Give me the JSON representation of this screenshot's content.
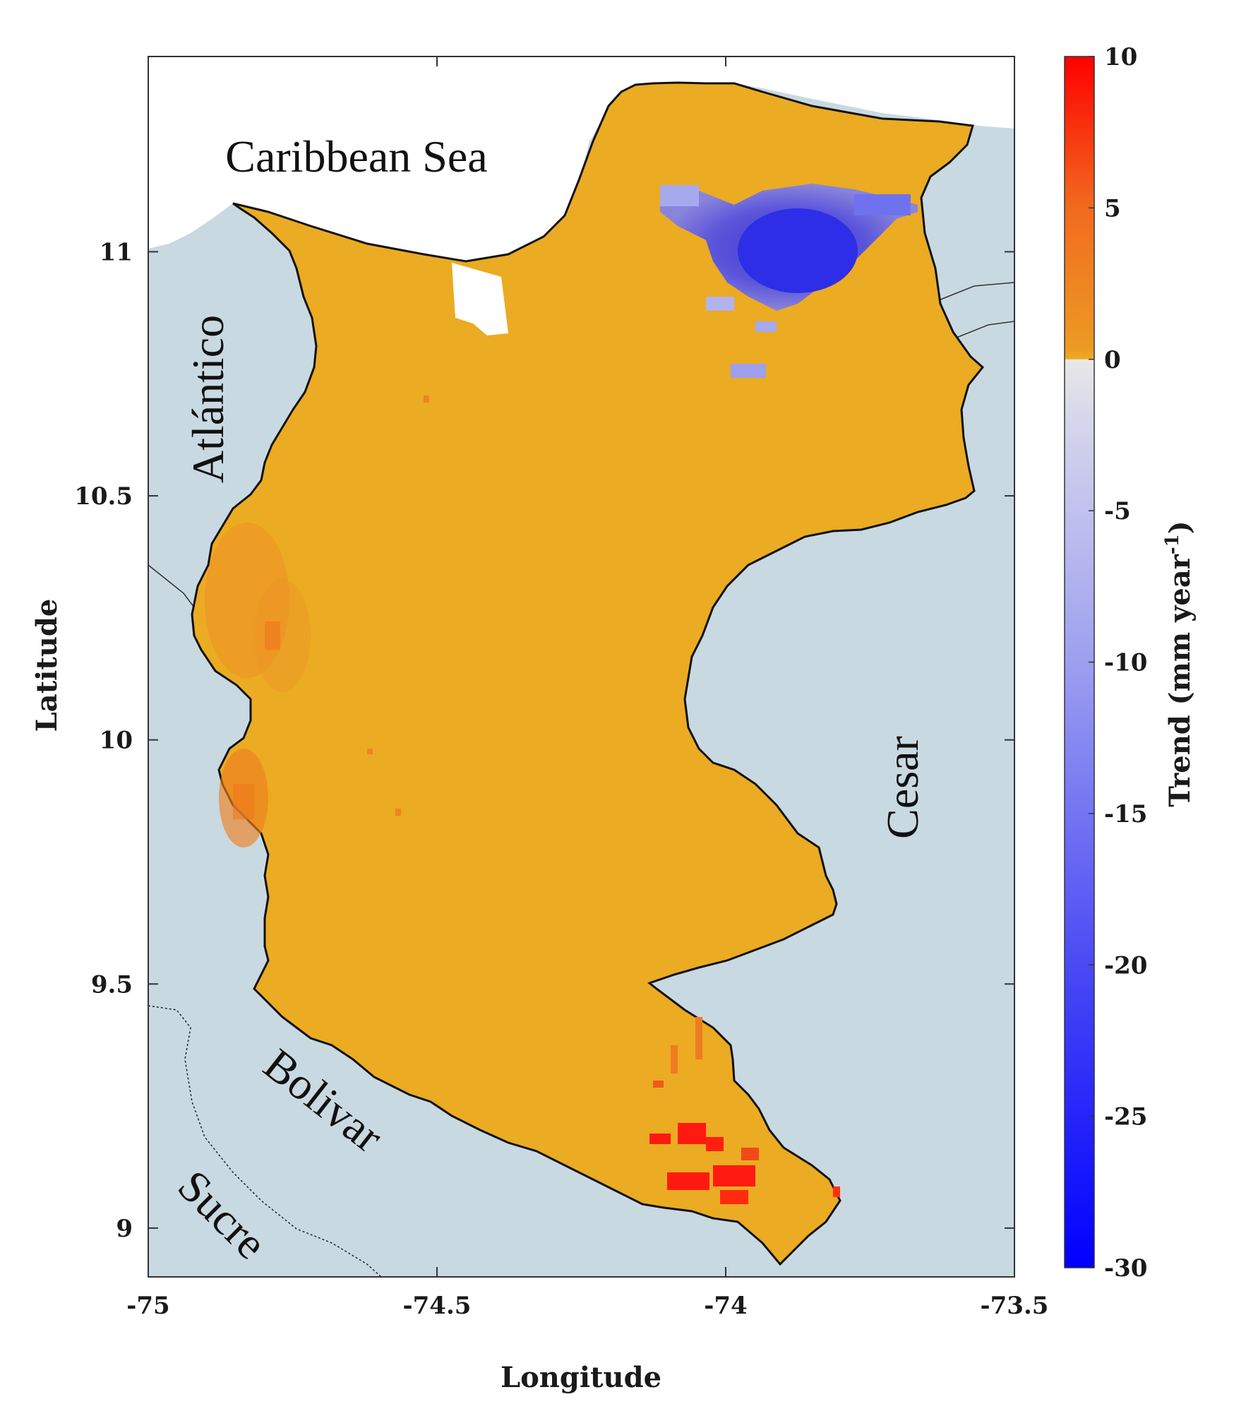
{
  "map": {
    "xlabel": "Longitude",
    "ylabel": "Latitude",
    "xticks": [
      {
        "value": -75,
        "label": "-75"
      },
      {
        "value": -74.5,
        "label": "-74.5"
      },
      {
        "value": -74,
        "label": "-74"
      },
      {
        "value": -73.5,
        "label": "-73.5"
      }
    ],
    "yticks": [
      {
        "value": 11,
        "label": "11"
      },
      {
        "value": 10.5,
        "label": "10.5"
      },
      {
        "value": 10,
        "label": "10"
      },
      {
        "value": 9.5,
        "label": "9.5"
      },
      {
        "value": 9,
        "label": "9"
      }
    ],
    "xlim": [
      -75,
      -73.5
    ],
    "ylim": [
      8.9,
      11.4
    ],
    "region_labels": {
      "caribbean": "Caribbean Sea",
      "atlantico": "Atlántico",
      "cesar": "Cesar",
      "bolivar": "Bolivar",
      "sucre": "Sucre"
    },
    "colors": {
      "land_background": "#c9d9e1",
      "sea": "#ffffff",
      "region_fill": "#ebab22"
    }
  },
  "colorbar": {
    "title": "Trend (mm year",
    "title_superscript": "-1",
    "title_suffix": ")",
    "min": -30,
    "max": 10,
    "ticks": [
      {
        "value": 10,
        "label": "10"
      },
      {
        "value": 5,
        "label": "5"
      },
      {
        "value": 0,
        "label": "0"
      },
      {
        "value": -5,
        "label": "-5"
      },
      {
        "value": -10,
        "label": "-10"
      },
      {
        "value": -15,
        "label": "-15"
      },
      {
        "value": -20,
        "label": "-20"
      },
      {
        "value": -25,
        "label": "-25"
      },
      {
        "value": -30,
        "label": "-30"
      }
    ],
    "stops": [
      {
        "value": -30,
        "color": "#0000ff"
      },
      {
        "value": -20,
        "color": "#4a4af5"
      },
      {
        "value": -10,
        "color": "#9d9ff0"
      },
      {
        "value": -2,
        "color": "#dcdcec"
      },
      {
        "value": 0,
        "color": "#e8e8e8"
      },
      {
        "value": 0.01,
        "color": "#ebab22"
      },
      {
        "value": 5,
        "color": "#f26a1e"
      },
      {
        "value": 10,
        "color": "#ff0000"
      }
    ]
  }
}
